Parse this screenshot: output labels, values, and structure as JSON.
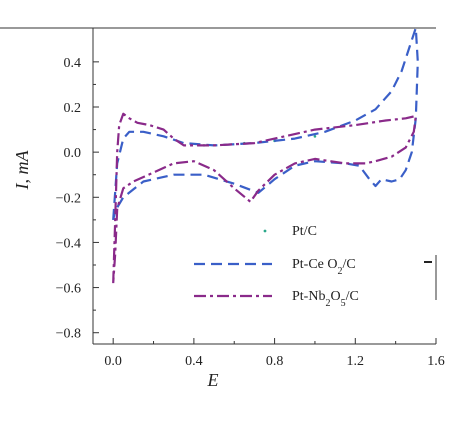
{
  "chart_data": {
    "type": "line",
    "xlabel": "E",
    "ylabel": "I, mA",
    "xlim": [
      -0.1,
      1.6
    ],
    "ylim": [
      -0.85,
      0.55
    ],
    "x_ticks": [
      0.0,
      0.4,
      0.8,
      1.2,
      1.6
    ],
    "x_tick_labels": [
      "0.0",
      "0.4",
      "0.8",
      "1.2",
      "1.6"
    ],
    "y_ticks": [
      -0.8,
      -0.6,
      -0.4,
      -0.2,
      0.0,
      0.2,
      0.4
    ],
    "y_tick_labels": [
      "−0.8",
      "−0.6",
      "−0.4",
      "−0.2",
      "0.0",
      "0.2",
      "0.4"
    ],
    "legend_position": "lower-right",
    "series": [
      {
        "name": "Pt/C",
        "legend_parts": [
          [
            "Pt/C",
            "normal"
          ]
        ],
        "color": "#2aa88a",
        "style": "dots",
        "x": [
          0.45,
          0.65,
          0.8,
          1.0
        ],
        "y": [
          0.03,
          0.04,
          0.05,
          0.07
        ]
      },
      {
        "name": "Pt-CeO2/C",
        "legend_parts": [
          [
            "Pt-Ce O",
            "normal"
          ],
          [
            "2",
            "sub"
          ],
          [
            "/C",
            "normal"
          ]
        ],
        "color": "#3a5fc8",
        "style": "long-dash",
        "x": [
          0.0,
          0.02,
          0.05,
          0.08,
          0.15,
          0.25,
          0.35,
          0.5,
          0.7,
          0.9,
          1.05,
          1.2,
          1.3,
          1.38,
          1.43,
          1.47,
          1.5,
          1.51,
          1.5,
          1.48,
          1.45,
          1.42,
          1.38,
          1.33,
          1.3,
          1.27,
          1.22,
          1.15,
          1.0,
          0.9,
          0.8,
          0.72,
          0.6,
          0.45,
          0.3,
          0.15,
          0.05,
          0.01,
          0.0
        ],
        "y": [
          -0.3,
          -0.05,
          0.06,
          0.09,
          0.09,
          0.07,
          0.04,
          0.03,
          0.04,
          0.06,
          0.09,
          0.14,
          0.19,
          0.27,
          0.36,
          0.47,
          0.55,
          0.4,
          0.15,
          0.0,
          -0.08,
          -0.12,
          -0.13,
          -0.12,
          -0.15,
          -0.12,
          -0.06,
          -0.05,
          -0.04,
          -0.06,
          -0.12,
          -0.18,
          -0.14,
          -0.1,
          -0.1,
          -0.13,
          -0.2,
          -0.26,
          -0.3
        ]
      },
      {
        "name": "Pt-Nb2O5/C",
        "legend_parts": [
          [
            "Pt-Nb",
            "normal"
          ],
          [
            "2",
            "sub"
          ],
          [
            "O",
            "normal"
          ],
          [
            "5",
            "sub"
          ],
          [
            "/C",
            "normal"
          ]
        ],
        "color": "#8a2a8a",
        "style": "dash-dot",
        "x": [
          0.0,
          0.01,
          0.02,
          0.03,
          0.05,
          0.08,
          0.12,
          0.18,
          0.25,
          0.3,
          0.35,
          0.5,
          0.7,
          0.85,
          1.0,
          1.2,
          1.35,
          1.45,
          1.5,
          1.49,
          1.45,
          1.38,
          1.3,
          1.25,
          1.15,
          1.0,
          0.9,
          0.8,
          0.72,
          0.68,
          0.6,
          0.5,
          0.4,
          0.3,
          0.2,
          0.1,
          0.05,
          0.02,
          0.01,
          0.0
        ],
        "y": [
          -0.58,
          -0.3,
          0.0,
          0.12,
          0.17,
          0.15,
          0.13,
          0.12,
          0.1,
          0.06,
          0.03,
          0.03,
          0.04,
          0.07,
          0.1,
          0.12,
          0.14,
          0.15,
          0.16,
          0.09,
          0.02,
          -0.02,
          -0.04,
          -0.05,
          -0.05,
          -0.03,
          -0.05,
          -0.1,
          -0.17,
          -0.22,
          -0.16,
          -0.08,
          -0.04,
          -0.05,
          -0.09,
          -0.13,
          -0.16,
          -0.25,
          -0.45,
          -0.58
        ]
      }
    ]
  }
}
